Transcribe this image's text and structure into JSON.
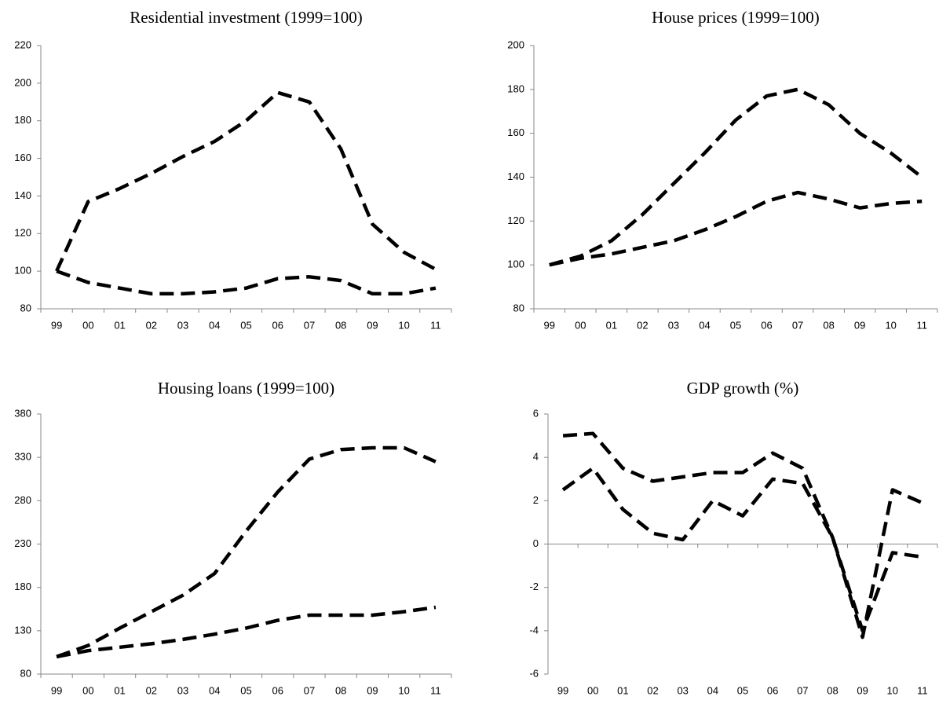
{
  "chart_data": [
    {
      "type": "line",
      "title": "Residential investment (1999=100)",
      "line_style": "dashed",
      "categories": [
        "99",
        "00",
        "01",
        "02",
        "03",
        "04",
        "05",
        "06",
        "07",
        "08",
        "09",
        "10",
        "11"
      ],
      "series": [
        {
          "color": "#000000",
          "values": [
            100,
            137,
            144,
            152,
            161,
            169,
            180,
            195,
            190,
            165,
            125,
            110,
            101
          ]
        },
        {
          "color": "#000000",
          "values": [
            100,
            94,
            91,
            88,
            88,
            89,
            91,
            96,
            97,
            95,
            88,
            88,
            91
          ]
        }
      ],
      "ylim": [
        80,
        220
      ],
      "yticks": [
        80,
        100,
        120,
        140,
        160,
        180,
        200,
        220
      ]
    },
    {
      "type": "line",
      "title": "House prices (1999=100)",
      "line_style": "dashed",
      "categories": [
        "99",
        "00",
        "01",
        "02",
        "03",
        "04",
        "05",
        "06",
        "07",
        "08",
        "09",
        "10",
        "11"
      ],
      "series": [
        {
          "color": "#000000",
          "values": [
            100,
            104,
            111,
            123,
            137,
            151,
            166,
            177,
            180,
            173,
            160,
            151,
            140
          ]
        },
        {
          "color": "#000000",
          "values": [
            100,
            103,
            105,
            108,
            111,
            116,
            122,
            129,
            133,
            130,
            126,
            128,
            129
          ]
        }
      ],
      "ylim": [
        80,
        200
      ],
      "yticks": [
        80,
        100,
        120,
        140,
        160,
        180,
        200
      ]
    },
    {
      "type": "line",
      "title": "Housing loans (1999=100)",
      "line_style": "dashed",
      "categories": [
        "99",
        "00",
        "01",
        "02",
        "03",
        "04",
        "05",
        "06",
        "07",
        "08",
        "09",
        "10",
        "11"
      ],
      "series": [
        {
          "color": "#000000",
          "values": [
            100,
            113,
            133,
            152,
            171,
            196,
            245,
            290,
            328,
            339,
            341,
            341,
            325
          ]
        },
        {
          "color": "#000000",
          "values": [
            100,
            107,
            111,
            115,
            120,
            126,
            133,
            142,
            148,
            148,
            148,
            152,
            157
          ]
        }
      ],
      "ylim": [
        80,
        380
      ],
      "yticks": [
        80,
        130,
        180,
        230,
        280,
        330,
        380
      ]
    },
    {
      "type": "line",
      "title": "GDP growth (%)",
      "line_style": "dashed",
      "categories": [
        "99",
        "00",
        "01",
        "02",
        "03",
        "04",
        "05",
        "06",
        "07",
        "08",
        "09",
        "10",
        "11"
      ],
      "series": [
        {
          "color": "#000000",
          "values": [
            5.0,
            5.1,
            3.5,
            2.9,
            3.1,
            3.3,
            3.3,
            4.2,
            3.5,
            0.3,
            -4.3,
            2.5,
            1.9
          ]
        },
        {
          "color": "#000000",
          "values": [
            2.5,
            3.5,
            1.6,
            0.5,
            0.2,
            2.0,
            1.3,
            3.0,
            2.8,
            0.3,
            -4.0,
            -0.4,
            -0.6
          ]
        }
      ],
      "ylim": [
        -6,
        6
      ],
      "yticks": [
        -6,
        -4,
        -2,
        0,
        2,
        4,
        6
      ]
    }
  ]
}
